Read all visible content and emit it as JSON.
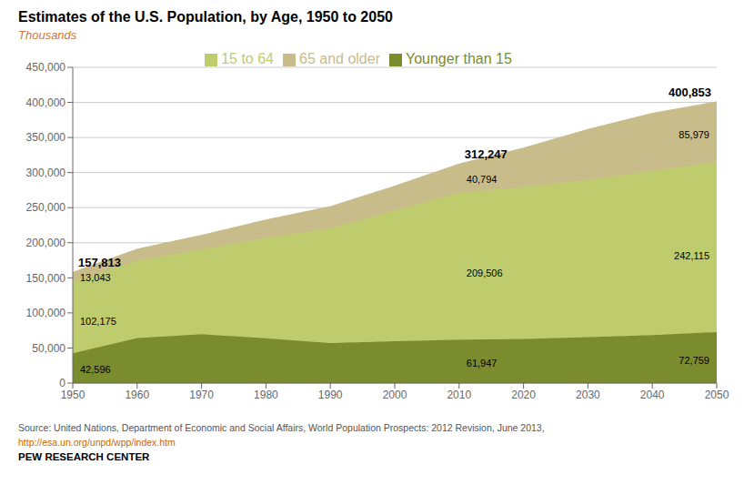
{
  "chart_data": {
    "type": "area",
    "title": "Estimates of the U.S. Population, by Age, 1950 to 2050",
    "subtitle": "Thousands",
    "x": [
      1950,
      1960,
      1970,
      1980,
      1990,
      2000,
      2010,
      2020,
      2030,
      2040,
      2050
    ],
    "series": [
      {
        "name": "Younger than 15",
        "color": "#7a8c2e",
        "values": [
          42596,
          64200,
          69600,
          64000,
          57000,
          59700,
          61947,
          63000,
          65500,
          68500,
          72759
        ],
        "value_labels": [
          "42,596",
          null,
          null,
          null,
          null,
          null,
          "61,947",
          null,
          null,
          null,
          "72,759"
        ]
      },
      {
        "name": "15 to 64",
        "color": "#bfcc6e",
        "values": [
          102175,
          110000,
          121000,
          143000,
          163000,
          186000,
          209506,
          216000,
          224000,
          234000,
          242115
        ],
        "value_labels": [
          "102,175",
          null,
          null,
          null,
          null,
          null,
          "209,506",
          null,
          null,
          null,
          "242,115"
        ]
      },
      {
        "name": "65 and older",
        "color": "#c8bc8a",
        "values": [
          13043,
          16600,
          20000,
          25500,
          31500,
          35000,
          40794,
          56000,
          72000,
          82000,
          85979
        ],
        "value_labels": [
          "13,043",
          null,
          null,
          null,
          null,
          null,
          "40,794",
          null,
          null,
          null,
          "85,979"
        ]
      }
    ],
    "total_labels": [
      "157,813",
      null,
      null,
      null,
      null,
      null,
      "312,247",
      null,
      null,
      null,
      "400,853"
    ],
    "stacked": true,
    "xlim": [
      1950,
      2050
    ],
    "xticks": [
      1950,
      1960,
      1970,
      1980,
      1990,
      2000,
      2010,
      2020,
      2030,
      2040,
      2050
    ],
    "ylim": [
      0,
      450000
    ],
    "yticks": [
      0,
      {
        "value": 50000,
        "label": "50,000"
      },
      {
        "value": 100000,
        "label": "100,000"
      },
      {
        "value": 150000,
        "label": "150,000"
      },
      {
        "value": 200000,
        "label": "200,000"
      },
      {
        "value": 250000,
        "label": "250,000"
      },
      {
        "value": 300000,
        "label": "300,000"
      },
      {
        "value": 350000,
        "label": "350,000"
      },
      {
        "value": 400000,
        "label": "400,000"
      },
      {
        "value": 450000,
        "label": "450,000"
      }
    ],
    "grid": true,
    "legend": "top",
    "source": [
      "Source: United Nations, Department of Economic and Social Affairs, World Population Prospects: 2012 Revision, June 2013,",
      "http://esa.un.org/unpd/wpp/index.htm",
      "PEW RESEARCH CENTER"
    ]
  }
}
